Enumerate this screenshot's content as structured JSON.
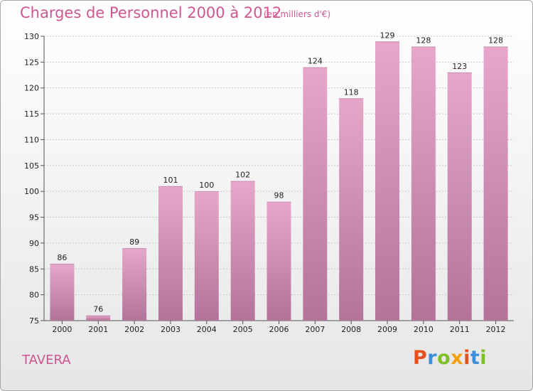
{
  "header": {
    "title": "Charges de Personnel 2000 à 2012",
    "subtitle": "(en milliers d'€)"
  },
  "commune": "TAVERA",
  "logo": {
    "text": "Proxiti",
    "letter_colors": [
      "#e8511e",
      "#3a8fd6",
      "#7fbf2a",
      "#f2a20f",
      "#e8511e",
      "#3a8fd6",
      "#7fbf2a"
    ]
  },
  "colors": {
    "bar_top": "#e6a7cb",
    "bar_bottom": "#b3739a",
    "accent": "#d0558f"
  },
  "chart_data": {
    "type": "bar",
    "categories": [
      "2000",
      "2001",
      "2002",
      "2003",
      "2004",
      "2005",
      "2006",
      "2007",
      "2008",
      "2009",
      "2010",
      "2011",
      "2012"
    ],
    "values": [
      86,
      76,
      89,
      101,
      100,
      102,
      98,
      124,
      118,
      129,
      128,
      123,
      128
    ],
    "title": "Charges de Personnel 2000 à 2012",
    "subtitle": "(en milliers d'€)",
    "xlabel": "",
    "ylabel": "",
    "ylim": [
      75,
      130
    ],
    "yticks": [
      75,
      80,
      85,
      90,
      95,
      100,
      105,
      110,
      115,
      120,
      125,
      130
    ],
    "grid": true,
    "data_labels": true
  }
}
